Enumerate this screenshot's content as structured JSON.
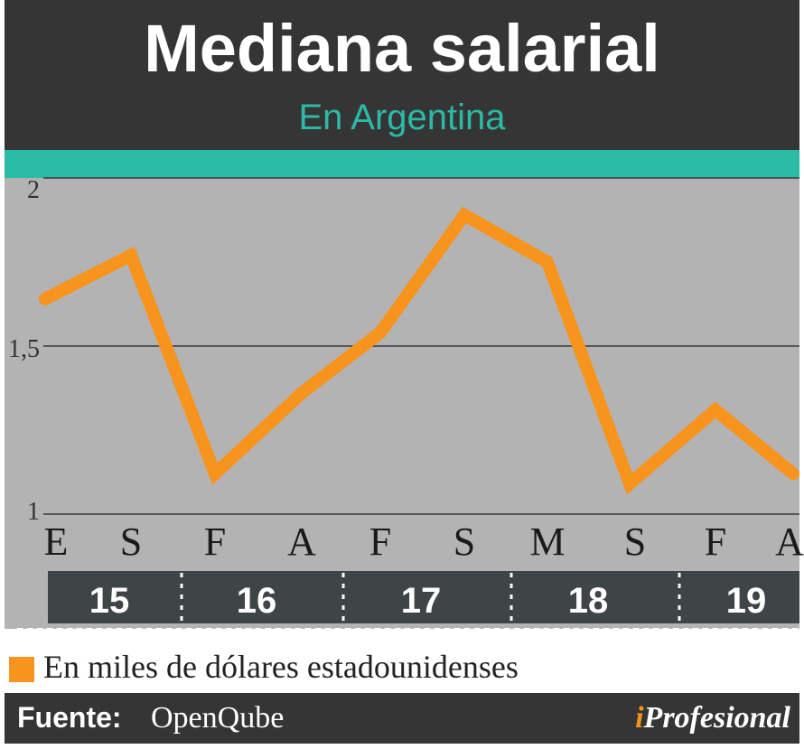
{
  "header": {
    "title": "Mediana salarial",
    "subtitle": "En Argentina"
  },
  "legend": {
    "label": "En miles de dólares estadounidenses",
    "color": "#f7941d"
  },
  "footer": {
    "source_label": "Fuente:",
    "source_value": "OpenQube",
    "logo_prefix": "i",
    "logo_rest": "Profesional"
  },
  "colors": {
    "header_bg": "#353535",
    "accent_teal": "#2bbaa6",
    "line_orange": "#f7941d",
    "plot_bg": "#b3b3b3",
    "year_band_bg": "#3f4446"
  },
  "chart_data": {
    "type": "line",
    "title": "Mediana salarial",
    "subtitle": "En Argentina",
    "ylabel": "",
    "xlabel": "",
    "ylim": [
      1,
      2
    ],
    "yticks": [
      {
        "value": 2,
        "label": "2"
      },
      {
        "value": 1.5,
        "label": "1,5"
      },
      {
        "value": 1,
        "label": "1"
      }
    ],
    "grid": true,
    "x": [
      "E",
      "S",
      "F",
      "A",
      "F",
      "S",
      "M",
      "S",
      "F",
      "A"
    ],
    "years": [
      "15",
      "16",
      "17",
      "18",
      "19"
    ],
    "series": [
      {
        "name": "",
        "values": [
          1.64,
          1.77,
          1.12,
          1.36,
          1.54,
          1.89,
          1.75,
          1.09,
          1.31,
          1.12
        ]
      }
    ]
  }
}
